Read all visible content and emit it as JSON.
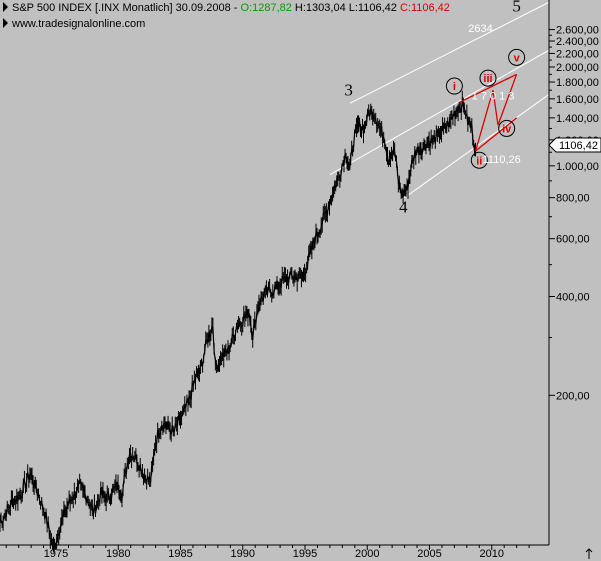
{
  "header": {
    "title_prefix": "S&P 500 INDEX [.INX  Monatlich] 30.09.2008 - ",
    "open": "O:1287,82",
    "high": "H:1303,04",
    "low": "L:1106,42",
    "close": "C:1106,42",
    "website": "www.tradesignalonline.com",
    "colors": {
      "open": "#00a000",
      "high": "#000000",
      "low": "#000000",
      "close": "#e00000"
    }
  },
  "chart_data": {
    "type": "line",
    "series_style": "monthly-ohlc-bars",
    "scale": "log",
    "x_ticks": [
      "1975",
      "1980",
      "1985",
      "1990",
      "1995",
      "2000",
      "2005",
      "2010"
    ],
    "y_ticks": [
      "2.600,00",
      "2.400,00",
      "2.200,00",
      "2.000,00",
      "1.800,00",
      "1.600,00",
      "1.400,00",
      "1.200,00",
      "1.000,00",
      "800,00",
      "600,00",
      "400,00",
      "200,00"
    ],
    "y_tick_values": [
      2600,
      2400,
      2200,
      2000,
      1800,
      1600,
      1400,
      1200,
      1000,
      800,
      600,
      400,
      200
    ],
    "last_price_label": "1106,42",
    "last_price": 1106.42,
    "xlim": [
      1970.5,
      2014.6
    ],
    "ylim": [
      70,
      3200
    ],
    "points": [
      [
        1970.5,
        82
      ],
      [
        1971.5,
        95
      ],
      [
        1972.2,
        100
      ],
      [
        1972.9,
        116
      ],
      [
        1973.5,
        102
      ],
      [
        1974.2,
        85
      ],
      [
        1974.8,
        68
      ],
      [
        1975.3,
        80
      ],
      [
        1975.8,
        90
      ],
      [
        1976.3,
        98
      ],
      [
        1976.9,
        105
      ],
      [
        1977.5,
        98
      ],
      [
        1978.0,
        88
      ],
      [
        1978.6,
        100
      ],
      [
        1979.2,
        98
      ],
      [
        1979.9,
        106
      ],
      [
        1980.3,
        100
      ],
      [
        1980.9,
        135
      ],
      [
        1981.5,
        128
      ],
      [
        1982.2,
        112
      ],
      [
        1982.6,
        110
      ],
      [
        1983.0,
        145
      ],
      [
        1983.5,
        165
      ],
      [
        1984.0,
        160
      ],
      [
        1984.5,
        155
      ],
      [
        1985.0,
        170
      ],
      [
        1985.6,
        188
      ],
      [
        1986.2,
        225
      ],
      [
        1986.6,
        240
      ],
      [
        1987.2,
        300
      ],
      [
        1987.6,
        328
      ],
      [
        1987.8,
        245
      ],
      [
        1988.3,
        262
      ],
      [
        1988.9,
        275
      ],
      [
        1989.5,
        325
      ],
      [
        1990.0,
        340
      ],
      [
        1990.5,
        360
      ],
      [
        1990.8,
        305
      ],
      [
        1991.3,
        385
      ],
      [
        1991.9,
        410
      ],
      [
        1992.5,
        420
      ],
      [
        1993.0,
        440
      ],
      [
        1993.6,
        455
      ],
      [
        1994.2,
        460
      ],
      [
        1994.8,
        455
      ],
      [
        1995.3,
        520
      ],
      [
        1995.8,
        600
      ],
      [
        1996.3,
        660
      ],
      [
        1996.8,
        740
      ],
      [
        1997.3,
        850
      ],
      [
        1997.8,
        950
      ],
      [
        1998.3,
        1100
      ],
      [
        1998.6,
        980
      ],
      [
        1998.9,
        1190
      ],
      [
        1999.3,
        1330
      ],
      [
        1999.7,
        1300
      ],
      [
        2000.2,
        1460
      ],
      [
        2000.6,
        1440
      ],
      [
        2001.0,
        1300
      ],
      [
        2001.4,
        1220
      ],
      [
        2001.7,
        1050
      ],
      [
        2002.2,
        1110
      ],
      [
        2002.5,
        900
      ],
      [
        2002.8,
        815
      ],
      [
        2003.2,
        850
      ],
      [
        2003.5,
        990
      ],
      [
        2003.9,
        1110
      ],
      [
        2004.4,
        1130
      ],
      [
        2004.8,
        1180
      ],
      [
        2005.3,
        1190
      ],
      [
        2005.8,
        1250
      ],
      [
        2006.3,
        1300
      ],
      [
        2006.8,
        1400
      ],
      [
        2007.3,
        1520
      ],
      [
        2007.8,
        1530
      ],
      [
        2008.0,
        1380
      ],
      [
        2008.4,
        1300
      ],
      [
        2008.7,
        1110
      ]
    ],
    "annotations": {
      "wave_labels_black": [
        {
          "text": "3",
          "x": 1998.5,
          "y": 1640
        },
        {
          "text": "4",
          "x": 2002.9,
          "y": 720
        },
        {
          "text": "5",
          "x": 2012.0,
          "y": 2950
        }
      ],
      "wave_labels_circled": [
        {
          "text": "i",
          "x": 2007.0,
          "y": 1750
        },
        {
          "text": "ii",
          "x": 2009.0,
          "y": 1040
        },
        {
          "text": "iii",
          "x": 2009.7,
          "y": 1850
        },
        {
          "text": "iv",
          "x": 2011.2,
          "y": 1300
        },
        {
          "text": "v",
          "x": 2012.0,
          "y": 2140
        }
      ],
      "value_labels": [
        {
          "text": "2634",
          "x": 2009.1,
          "y": 2634
        },
        {
          "text": "1110,26",
          "x": 2010.8,
          "y": 1050
        },
        {
          "text": "1 7 0 1 3",
          "x": 2010.1,
          "y": 1640
        }
      ]
    }
  }
}
